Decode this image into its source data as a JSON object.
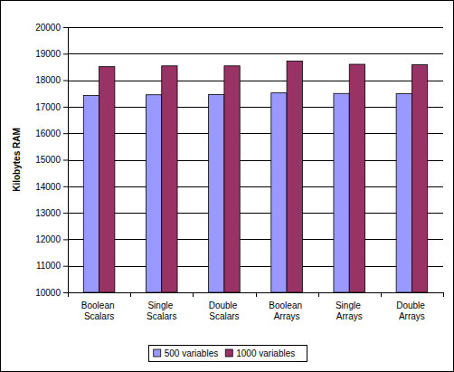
{
  "chart_data": {
    "type": "bar",
    "y_label": "Kilobytes RAM",
    "categories": [
      "Boolean Scalars",
      "Single Scalars",
      "Double Scalars",
      "Boolean Arrays",
      "Single Arrays",
      "Double Arrays"
    ],
    "series": [
      {
        "name": "500 variables",
        "color": "#9999ff",
        "values": [
          17420,
          17450,
          17460,
          17520,
          17500,
          17490
        ]
      },
      {
        "name": "1000 variables",
        "color": "#993366",
        "values": [
          18510,
          18540,
          18540,
          18720,
          18600,
          18580
        ]
      }
    ],
    "ylim": [
      10000,
      20000
    ],
    "yticks": [
      10000,
      11000,
      12000,
      13000,
      14000,
      15000,
      16000,
      17000,
      18000,
      19000,
      20000
    ],
    "grid": true,
    "legend": "bottom"
  }
}
